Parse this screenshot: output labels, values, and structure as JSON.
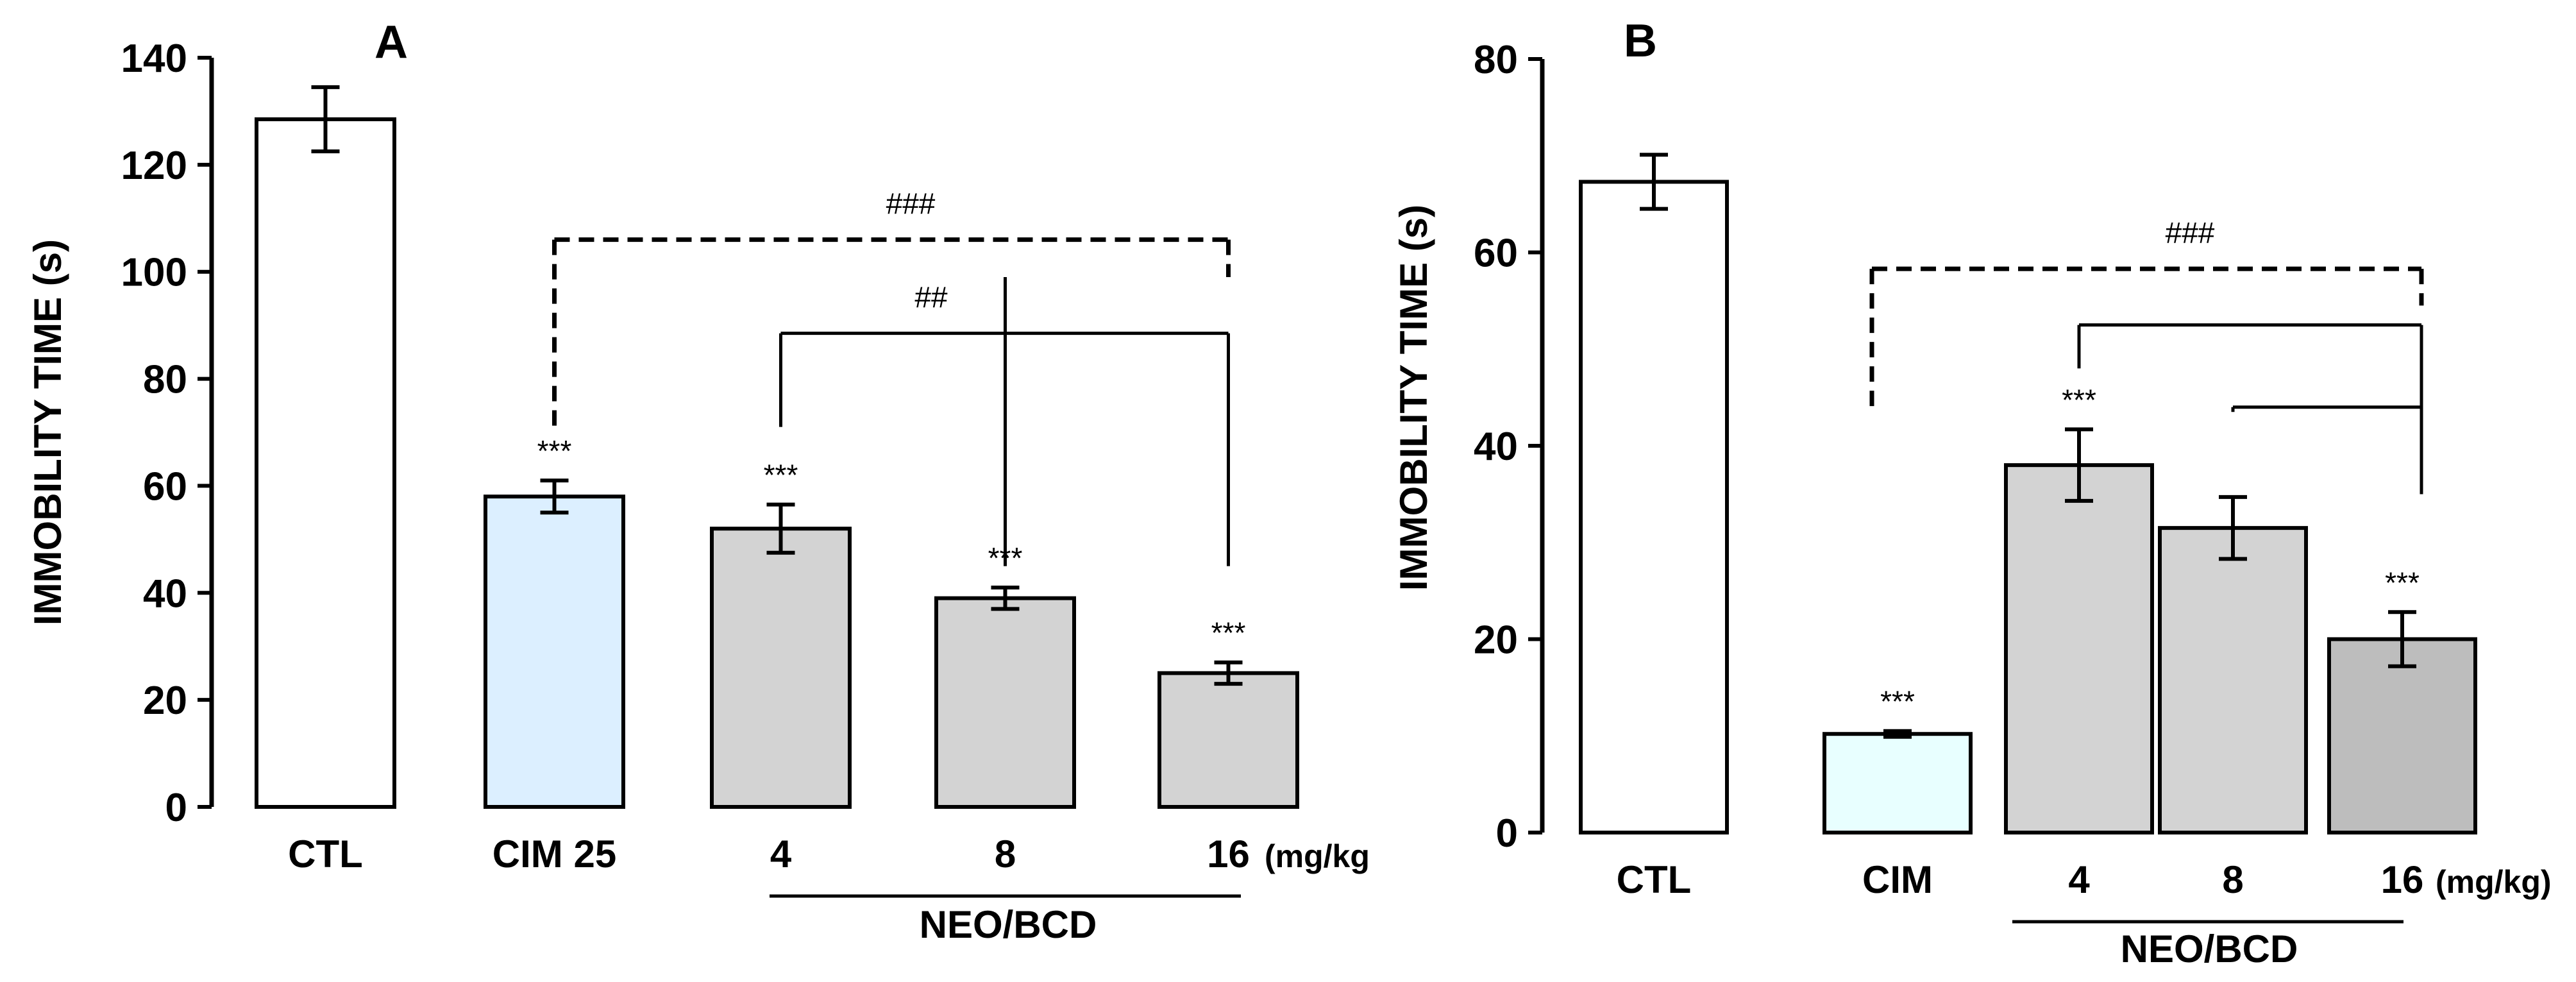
{
  "chart_data": [
    {
      "panel": "A",
      "type": "bar",
      "ylabel": "IMMOBILITY TIME (s)",
      "ylim": [
        0,
        140
      ],
      "yticks": [
        "0",
        "20",
        "40",
        "60",
        "80",
        "100",
        "120",
        "140"
      ],
      "categories": [
        "CTL",
        "CIM 25",
        "4",
        "8",
        "16"
      ],
      "values": [
        128.5,
        58,
        52,
        39,
        25
      ],
      "errors": [
        6,
        3,
        4.5,
        2,
        2
      ],
      "colors": [
        "#ffffff",
        "#dcefff",
        "#d3d3d3",
        "#d3d3d3",
        "#d3d3d3"
      ],
      "significance": [
        "",
        "***",
        "***",
        "***",
        "***"
      ],
      "unit_label": "(mg/kg",
      "group_label": "NEO/BCD",
      "comparisons": [
        {
          "label": "###",
          "from": 1,
          "to": 4,
          "level": 106,
          "style": "dashed"
        },
        {
          "label": "##",
          "from": 2,
          "to": 4,
          "level": 88.5,
          "style": "solid"
        }
      ]
    },
    {
      "panel": "B",
      "type": "bar",
      "ylabel": "IMMOBILITY TIME (s)",
      "ylim": [
        0,
        80
      ],
      "yticks": [
        "0",
        "20",
        "40",
        "60",
        "80"
      ],
      "categories": [
        "CTL",
        "CIM",
        "4",
        "8",
        "16"
      ],
      "values": [
        67.3,
        10.2,
        38,
        31.5,
        20
      ],
      "errors": [
        2.8,
        0.3,
        3.7,
        3.2,
        2.8
      ],
      "colors": [
        "#ffffff",
        "#e8ffff",
        "#d3d3d3",
        "#d3d3d3",
        "#bdbdbd"
      ],
      "significance": [
        "",
        "***",
        "***",
        "",
        "***"
      ],
      "unit_label": "(mg/kg)",
      "group_label": "NEO/BCD",
      "comparisons": [
        {
          "label": "###",
          "from": 1,
          "to": 4,
          "level": 58.3,
          "style": "dashed"
        },
        {
          "label": "",
          "from": 2,
          "to": 4,
          "level": 52.5,
          "style": "solid"
        },
        {
          "label": "",
          "from": 3,
          "to": 4,
          "level": 44,
          "style": "solid"
        }
      ]
    }
  ]
}
